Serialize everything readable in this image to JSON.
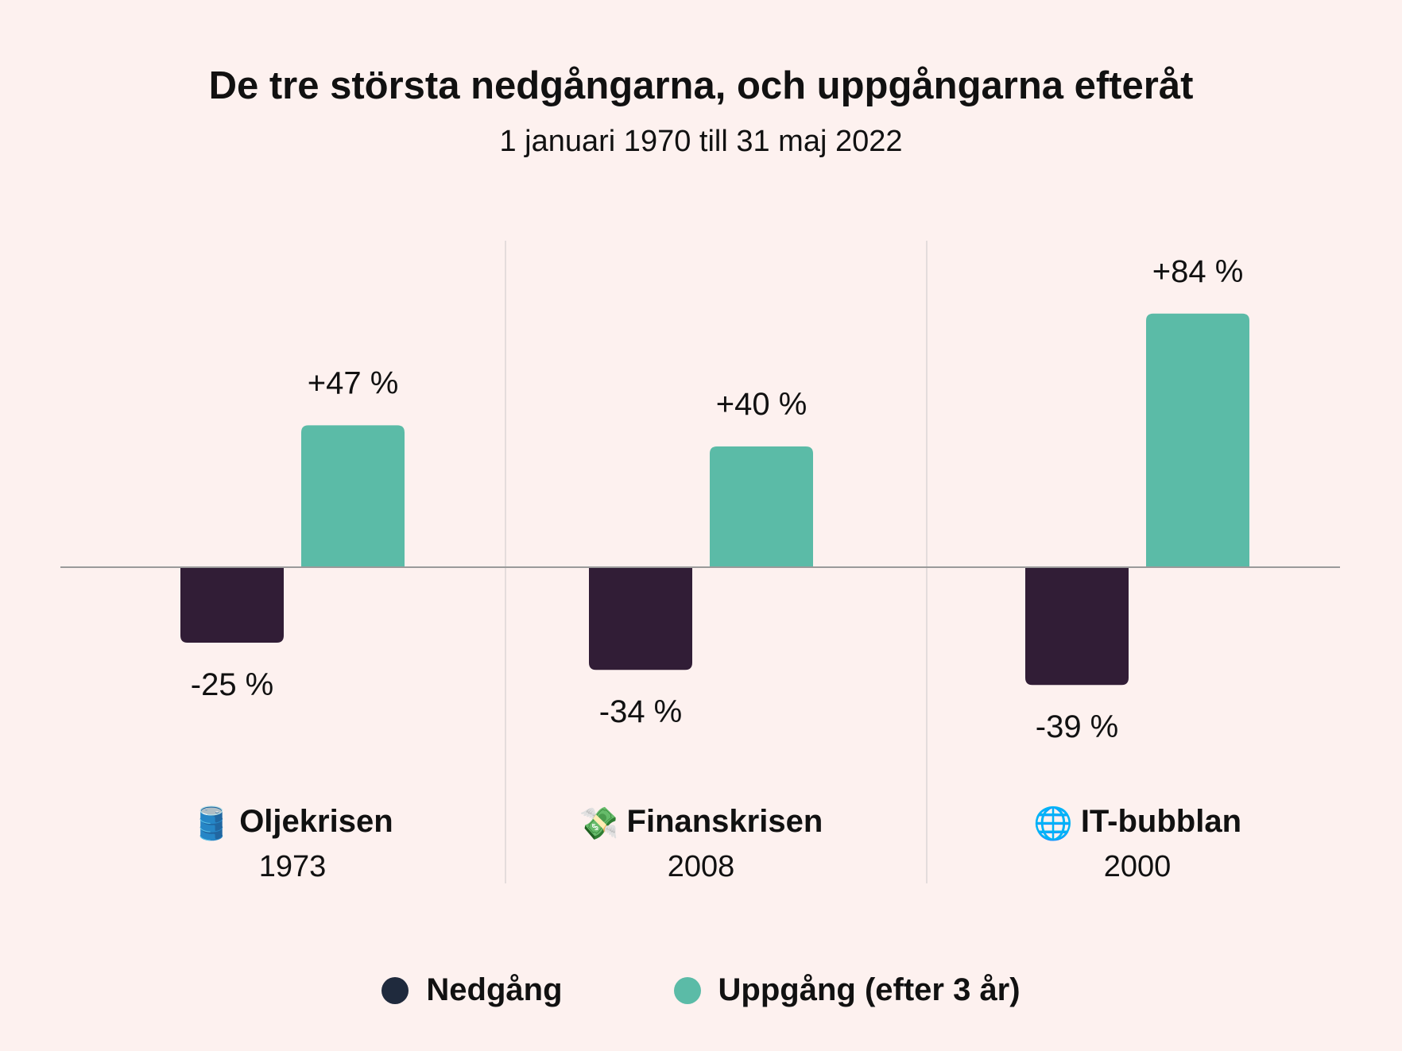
{
  "title": "De tre största nedgångarna, och uppgångarna efteråt",
  "subtitle": "1 januari 1970 till 31 maj 2022",
  "colors": {
    "background": "#fdf1ef",
    "decline": "#311d36",
    "rise": "#5bbba7",
    "axis": "#9a9a9a",
    "divider": "#dcd6d5"
  },
  "chart_data": {
    "type": "bar",
    "title": "De tre största nedgångarna, och uppgångarna efteråt",
    "subtitle": "1 januari 1970 till 31 maj 2022",
    "categories": [
      "Oljekrisen",
      "Finanskrisen",
      "IT-bubblan"
    ],
    "category_years": [
      "1973",
      "2008",
      "2000"
    ],
    "category_icons": [
      "oil-barrel-icon",
      "money-with-wings-icon",
      "globe-icon"
    ],
    "series": [
      {
        "name": "Nedgång",
        "values": [
          -25,
          -34,
          -39
        ],
        "labels": [
          "-25 %",
          "-34 %",
          "-39 %"
        ]
      },
      {
        "name": "Uppgång (efter 3 år)",
        "values": [
          47,
          40,
          84
        ],
        "labels": [
          "+47 %",
          "+40 %",
          "+84 %"
        ]
      }
    ],
    "ylim": [
      -50,
      100
    ],
    "xlabel": "",
    "ylabel": "",
    "legend_position": "bottom"
  },
  "legend": {
    "items": [
      {
        "label": "Nedgång"
      },
      {
        "label": "Uppgång (efter 3 år)"
      }
    ]
  }
}
